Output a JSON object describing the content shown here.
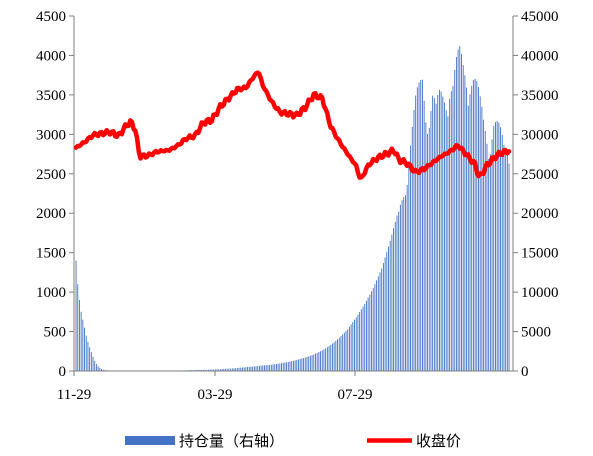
{
  "chart_data": {
    "type": "bar+line",
    "title": "",
    "x_tick_labels": [
      "11-29",
      "03-29",
      "07-29"
    ],
    "left_axis": {
      "ylim": [
        0,
        4500
      ],
      "ticks": [
        0,
        500,
        1000,
        1500,
        2000,
        2500,
        3000,
        3500,
        4000,
        4500
      ]
    },
    "right_axis": {
      "ylim": [
        0,
        45000
      ],
      "ticks": [
        0,
        5000,
        10000,
        15000,
        20000,
        25000,
        30000,
        35000,
        40000,
        45000
      ]
    },
    "legend": {
      "position": "bottom",
      "entries": [
        "持仓量（右轴）",
        "收盘价"
      ]
    },
    "colors": {
      "bars": "#4472C4",
      "line": "#FF0000"
    },
    "series": [
      {
        "name": "持仓量（右轴）",
        "axis": "right",
        "kind": "bar",
        "points": [
          [
            0,
            14000
          ],
          [
            2,
            11000
          ],
          [
            4,
            9000
          ],
          [
            6,
            7500
          ],
          [
            8,
            6500
          ],
          [
            10,
            5500
          ],
          [
            12,
            4500
          ],
          [
            14,
            3700
          ],
          [
            16,
            3000
          ],
          [
            18,
            2400
          ],
          [
            20,
            1800
          ],
          [
            22,
            1300
          ],
          [
            24,
            900
          ],
          [
            26,
            600
          ],
          [
            28,
            400
          ],
          [
            30,
            250
          ],
          [
            32,
            150
          ],
          [
            35,
            100
          ],
          [
            40,
            60
          ],
          [
            50,
            40
          ],
          [
            60,
            30
          ],
          [
            70,
            30
          ],
          [
            80,
            40
          ],
          [
            90,
            40
          ],
          [
            100,
            50
          ],
          [
            110,
            60
          ],
          [
            120,
            70
          ],
          [
            130,
            90
          ],
          [
            140,
            120
          ],
          [
            150,
            150
          ],
          [
            160,
            180
          ],
          [
            170,
            230
          ],
          [
            180,
            300
          ],
          [
            190,
            380
          ],
          [
            200,
            480
          ],
          [
            210,
            580
          ],
          [
            220,
            700
          ],
          [
            230,
            800
          ],
          [
            240,
            950
          ],
          [
            250,
            1150
          ],
          [
            260,
            1400
          ],
          [
            270,
            1700
          ],
          [
            280,
            2100
          ],
          [
            290,
            2600
          ],
          [
            300,
            3300
          ],
          [
            310,
            4200
          ],
          [
            320,
            5300
          ],
          [
            330,
            6800
          ],
          [
            340,
            8500
          ],
          [
            350,
            10500
          ],
          [
            360,
            13000
          ],
          [
            370,
            16500
          ],
          [
            380,
            20500
          ],
          [
            385,
            24000
          ],
          [
            390,
            28000
          ],
          [
            395,
            31500
          ],
          [
            400,
            35000
          ],
          [
            405,
            37500
          ],
          [
            408,
            39500
          ],
          [
            412,
            37000
          ],
          [
            416,
            35000
          ],
          [
            420,
            36500
          ],
          [
            424,
            34000
          ],
          [
            428,
            36000
          ],
          [
            432,
            37000
          ],
          [
            436,
            38500
          ],
          [
            440,
            39500
          ],
          [
            444,
            38000
          ],
          [
            448,
            40000
          ],
          [
            452,
            41500
          ],
          [
            456,
            41000
          ],
          [
            460,
            41500
          ],
          [
            464,
            40500
          ],
          [
            468,
            39000
          ],
          [
            472,
            37000
          ],
          [
            476,
            35000
          ],
          [
            480,
            33500
          ],
          [
            484,
            33000
          ],
          [
            488,
            32000
          ],
          [
            492,
            33000
          ],
          [
            496,
            32000
          ],
          [
            500,
            31000
          ],
          [
            504,
            30000
          ],
          [
            508,
            31500
          ]
        ]
      },
      {
        "name": "收盘价",
        "axis": "left",
        "kind": "line",
        "points": [
          [
            0,
            2830
          ],
          [
            10,
            2900
          ],
          [
            20,
            2990
          ],
          [
            30,
            3010
          ],
          [
            40,
            3030
          ],
          [
            50,
            2980
          ],
          [
            60,
            3120
          ],
          [
            65,
            3160
          ],
          [
            70,
            3050
          ],
          [
            75,
            2720
          ],
          [
            85,
            2730
          ],
          [
            95,
            2780
          ],
          [
            110,
            2800
          ],
          [
            120,
            2860
          ],
          [
            130,
            2950
          ],
          [
            140,
            2980
          ],
          [
            150,
            3150
          ],
          [
            160,
            3180
          ],
          [
            170,
            3350
          ],
          [
            180,
            3460
          ],
          [
            190,
            3570
          ],
          [
            200,
            3590
          ],
          [
            210,
            3740
          ],
          [
            215,
            3800
          ],
          [
            220,
            3620
          ],
          [
            230,
            3420
          ],
          [
            240,
            3280
          ],
          [
            250,
            3260
          ],
          [
            260,
            3240
          ],
          [
            270,
            3340
          ],
          [
            280,
            3500
          ],
          [
            290,
            3460
          ],
          [
            300,
            3100
          ],
          [
            310,
            2910
          ],
          [
            320,
            2750
          ],
          [
            330,
            2600
          ],
          [
            335,
            2420
          ],
          [
            345,
            2620
          ],
          [
            355,
            2700
          ],
          [
            365,
            2750
          ],
          [
            375,
            2800
          ],
          [
            380,
            2680
          ],
          [
            390,
            2630
          ],
          [
            400,
            2520
          ],
          [
            410,
            2560
          ],
          [
            420,
            2640
          ],
          [
            430,
            2720
          ],
          [
            440,
            2780
          ],
          [
            450,
            2860
          ],
          [
            460,
            2740
          ],
          [
            470,
            2620
          ],
          [
            475,
            2450
          ],
          [
            485,
            2620
          ],
          [
            495,
            2730
          ],
          [
            505,
            2780
          ],
          [
            510,
            2790
          ]
        ]
      }
    ]
  }
}
